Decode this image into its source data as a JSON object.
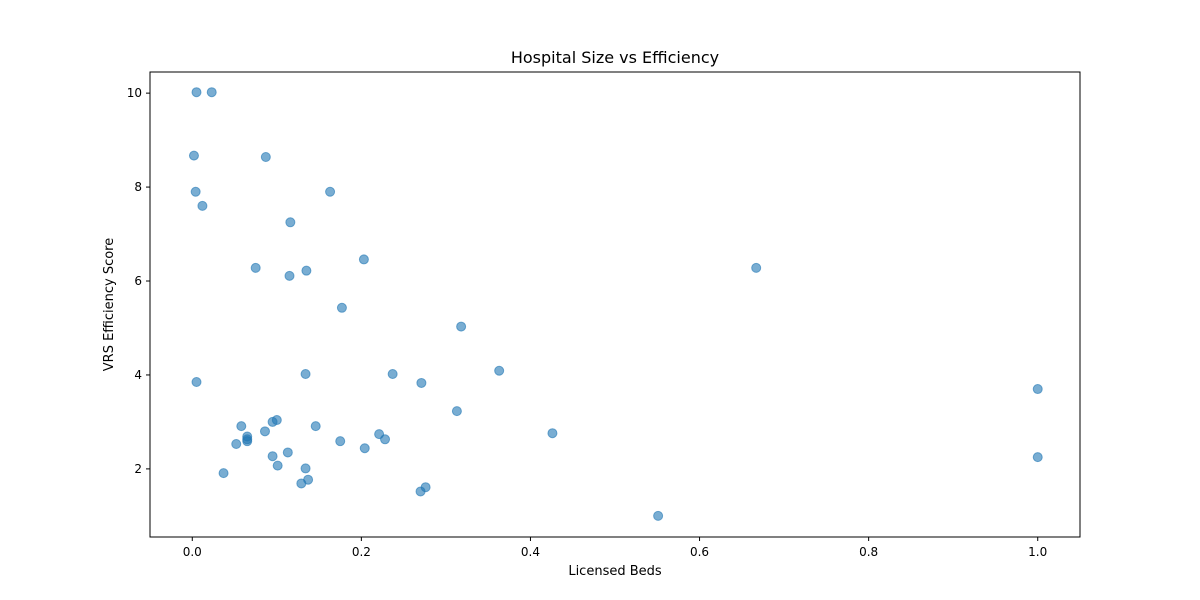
{
  "chart_data": {
    "type": "scatter",
    "title": "Hospital Size vs Efficiency",
    "xlabel": "Licensed Beds",
    "ylabel": "VRS Efficiency Score",
    "xlim": [
      -0.05,
      1.05
    ],
    "ylim": [
      0.55,
      10.45
    ],
    "x_ticks": [
      "0.0",
      "0.2",
      "0.4",
      "0.6",
      "0.8",
      "1.0"
    ],
    "y_ticks": [
      "2",
      "4",
      "6",
      "8",
      "10"
    ],
    "x_tick_values": [
      0.0,
      0.2,
      0.4,
      0.6,
      0.8,
      1.0
    ],
    "y_tick_values": [
      2,
      4,
      6,
      8,
      10
    ],
    "grid": false,
    "color": "#1f77b4",
    "points": [
      {
        "x": 0.005,
        "y": 10.02
      },
      {
        "x": 0.023,
        "y": 10.02
      },
      {
        "x": 0.002,
        "y": 8.67
      },
      {
        "x": 0.087,
        "y": 8.64
      },
      {
        "x": 0.004,
        "y": 7.9
      },
      {
        "x": 0.163,
        "y": 7.9
      },
      {
        "x": 0.012,
        "y": 7.6
      },
      {
        "x": 0.116,
        "y": 7.25
      },
      {
        "x": 0.075,
        "y": 6.28
      },
      {
        "x": 0.115,
        "y": 6.11
      },
      {
        "x": 0.135,
        "y": 6.22
      },
      {
        "x": 0.203,
        "y": 6.46
      },
      {
        "x": 0.667,
        "y": 6.28
      },
      {
        "x": 0.177,
        "y": 5.43
      },
      {
        "x": 0.318,
        "y": 5.03
      },
      {
        "x": 0.005,
        "y": 3.85
      },
      {
        "x": 0.134,
        "y": 4.02
      },
      {
        "x": 0.237,
        "y": 4.02
      },
      {
        "x": 0.271,
        "y": 3.83
      },
      {
        "x": 0.363,
        "y": 4.09
      },
      {
        "x": 1.0,
        "y": 3.7
      },
      {
        "x": 0.313,
        "y": 3.23
      },
      {
        "x": 0.058,
        "y": 2.91
      },
      {
        "x": 0.095,
        "y": 3.0
      },
      {
        "x": 0.1,
        "y": 3.04
      },
      {
        "x": 0.146,
        "y": 2.91
      },
      {
        "x": 0.086,
        "y": 2.8
      },
      {
        "x": 0.065,
        "y": 2.69
      },
      {
        "x": 0.065,
        "y": 2.63
      },
      {
        "x": 0.065,
        "y": 2.59
      },
      {
        "x": 0.052,
        "y": 2.53
      },
      {
        "x": 0.175,
        "y": 2.59
      },
      {
        "x": 0.221,
        "y": 2.74
      },
      {
        "x": 0.228,
        "y": 2.63
      },
      {
        "x": 0.426,
        "y": 2.76
      },
      {
        "x": 0.204,
        "y": 2.44
      },
      {
        "x": 0.113,
        "y": 2.35
      },
      {
        "x": 0.095,
        "y": 2.27
      },
      {
        "x": 1.0,
        "y": 2.25
      },
      {
        "x": 0.101,
        "y": 2.07
      },
      {
        "x": 0.134,
        "y": 2.01
      },
      {
        "x": 0.037,
        "y": 1.91
      },
      {
        "x": 0.137,
        "y": 1.77
      },
      {
        "x": 0.129,
        "y": 1.69
      },
      {
        "x": 0.276,
        "y": 1.61
      },
      {
        "x": 0.27,
        "y": 1.52
      },
      {
        "x": 0.551,
        "y": 1.0
      }
    ]
  }
}
